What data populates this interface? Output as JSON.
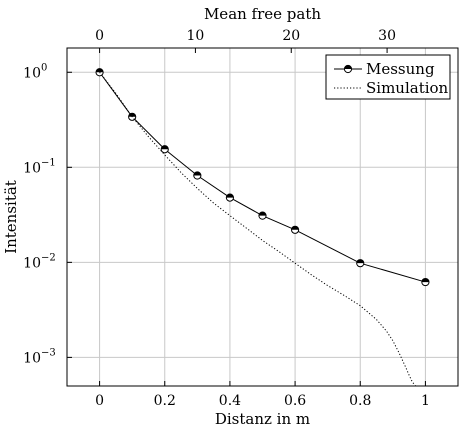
{
  "chart_data": {
    "type": "line",
    "title": "",
    "xlabel": "Distanz in m",
    "ylabel": "Intensität",
    "x2label": "Mean free path",
    "xlim": [
      -0.1,
      1.1
    ],
    "x2lim": [
      -3.4,
      37.4
    ],
    "ylim": [
      0.0005,
      1.8
    ],
    "yscale": "log",
    "grid": true,
    "legend_position": "top-right",
    "xticks": [
      0,
      0.2,
      0.4,
      0.6,
      0.8,
      1
    ],
    "xtick_labels": [
      "0",
      "0.2",
      "0.4",
      "0.6",
      "0.8",
      "1"
    ],
    "x2ticks": [
      0,
      10,
      20,
      30
    ],
    "x2tick_labels": [
      "0",
      "10",
      "20",
      "30"
    ],
    "yticks": [
      {
        "value": 1,
        "base": "10",
        "exp": "0"
      },
      {
        "value": 0.1,
        "base": "10",
        "exp": "−1"
      },
      {
        "value": 0.01,
        "base": "10",
        "exp": "−2"
      },
      {
        "value": 0.001,
        "base": "10",
        "exp": "−3"
      }
    ],
    "series": [
      {
        "name": "Messung",
        "style": "solid-marker",
        "color": "#000000",
        "x": [
          0,
          0.1,
          0.2,
          0.3,
          0.4,
          0.5,
          0.6,
          0.8,
          1.0
        ],
        "y": [
          1.0,
          0.34,
          0.155,
          0.082,
          0.048,
          0.031,
          0.022,
          0.0098,
          0.0062
        ]
      },
      {
        "name": "Simulation",
        "style": "dotted",
        "color": "#000000",
        "x": [
          0,
          0.05,
          0.1,
          0.15,
          0.2,
          0.25,
          0.3,
          0.35,
          0.4,
          0.45,
          0.5,
          0.55,
          0.6,
          0.65,
          0.7,
          0.75,
          0.8,
          0.85,
          0.88,
          0.9,
          0.92,
          0.94,
          0.95,
          0.96,
          0.97
        ],
        "y": [
          1.0,
          0.6,
          0.34,
          0.21,
          0.135,
          0.088,
          0.06,
          0.042,
          0.031,
          0.023,
          0.017,
          0.013,
          0.0098,
          0.0074,
          0.0057,
          0.0045,
          0.0035,
          0.0025,
          0.0019,
          0.0015,
          0.0011,
          0.00078,
          0.00065,
          0.00055,
          0.0005
        ]
      }
    ]
  }
}
